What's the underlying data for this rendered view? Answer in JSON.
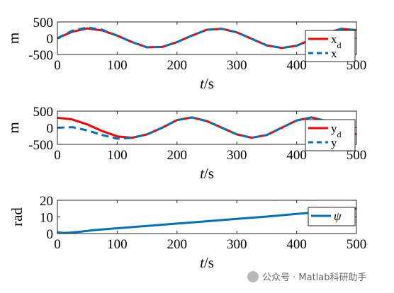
{
  "chart_data": [
    {
      "type": "line",
      "xlabel": "t/s",
      "ylabel": "m",
      "xlim": [
        0,
        500
      ],
      "ylim": [
        -500,
        500
      ],
      "xticks": [
        0,
        100,
        200,
        300,
        400,
        500
      ],
      "yticks": [
        -500,
        0,
        500
      ],
      "legend_position": "right",
      "series": [
        {
          "name": "x_d",
          "color": "#ff0000",
          "style": "solid",
          "x": [
            0,
            25,
            50,
            75,
            100,
            125,
            150,
            175,
            200,
            225,
            250,
            275,
            300,
            325,
            350,
            375,
            400,
            425,
            450,
            475,
            500
          ],
          "y": [
            0,
            200,
            300,
            240,
            80,
            -120,
            -280,
            -270,
            -120,
            80,
            260,
            290,
            180,
            -20,
            -220,
            -300,
            -230,
            -40,
            160,
            290,
            250
          ]
        },
        {
          "name": "x",
          "color": "#0072bd",
          "style": "dashed",
          "x": [
            0,
            25,
            50,
            75,
            100,
            125,
            150,
            175,
            200,
            225,
            250,
            275,
            300,
            325,
            350,
            375,
            400,
            425,
            450,
            475,
            500
          ],
          "y": [
            0,
            230,
            330,
            260,
            80,
            -120,
            -280,
            -270,
            -120,
            80,
            260,
            290,
            180,
            -20,
            -220,
            -300,
            -230,
            -40,
            160,
            290,
            250
          ]
        }
      ]
    },
    {
      "type": "line",
      "xlabel": "t/s",
      "ylabel": "m",
      "xlim": [
        0,
        500
      ],
      "ylim": [
        -500,
        500
      ],
      "xticks": [
        0,
        100,
        200,
        300,
        400,
        500
      ],
      "yticks": [
        -500,
        0,
        500
      ],
      "legend_position": "right",
      "series": [
        {
          "name": "y_d",
          "color": "#ff0000",
          "style": "solid",
          "x": [
            0,
            25,
            50,
            75,
            100,
            125,
            150,
            175,
            200,
            225,
            250,
            275,
            300,
            325,
            350,
            375,
            400,
            425,
            450,
            475,
            500
          ],
          "y": [
            300,
            250,
            100,
            -100,
            -260,
            -300,
            -200,
            0,
            230,
            310,
            200,
            0,
            -200,
            -300,
            -220,
            0,
            220,
            310,
            200,
            0,
            -200
          ]
        },
        {
          "name": "y",
          "color": "#0072bd",
          "style": "dashed",
          "x": [
            0,
            25,
            50,
            75,
            100,
            125,
            150,
            175,
            200,
            225,
            250,
            275,
            300,
            325,
            350,
            375,
            400,
            425,
            450,
            475,
            500
          ],
          "y": [
            0,
            20,
            -80,
            -220,
            -330,
            -300,
            -200,
            0,
            230,
            310,
            200,
            0,
            -200,
            -300,
            -220,
            0,
            220,
            310,
            200,
            0,
            -200
          ]
        }
      ]
    },
    {
      "type": "line",
      "xlabel": "t/s",
      "ylabel": "rad",
      "xlim": [
        0,
        500
      ],
      "ylim": [
        0,
        20
      ],
      "xticks": [
        0,
        100,
        200,
        300,
        400,
        500
      ],
      "yticks": [
        0,
        10,
        20
      ],
      "legend_position": "right",
      "series": [
        {
          "name": "ψ",
          "color": "#0072bd",
          "style": "solid",
          "x": [
            0,
            10,
            20,
            40,
            60,
            80,
            100,
            150,
            200,
            250,
            300,
            350,
            400,
            450,
            500
          ],
          "y": [
            0.8,
            0.4,
            0.5,
            1.2,
            2.0,
            2.6,
            3.2,
            4.6,
            6.0,
            7.4,
            8.8,
            10.2,
            11.8,
            13.3,
            15.0
          ]
        }
      ]
    }
  ],
  "watermark": "公众号 · Matlab科研助手"
}
